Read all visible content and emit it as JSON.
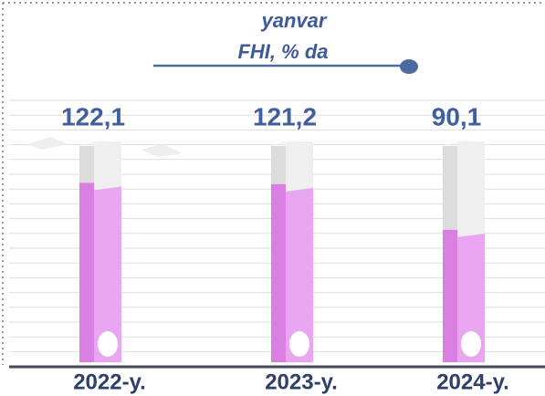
{
  "chart_data": {
    "type": "bar",
    "title": "yanvar",
    "subtitle": "FHI, % da",
    "categories": [
      "2022-y.",
      "2023-y.",
      "2024-y."
    ],
    "values": [
      122.1,
      121.2,
      90.1
    ],
    "value_labels": [
      "122,1",
      "121,2",
      "90,1"
    ],
    "color": "#e9a6f0"
  }
}
